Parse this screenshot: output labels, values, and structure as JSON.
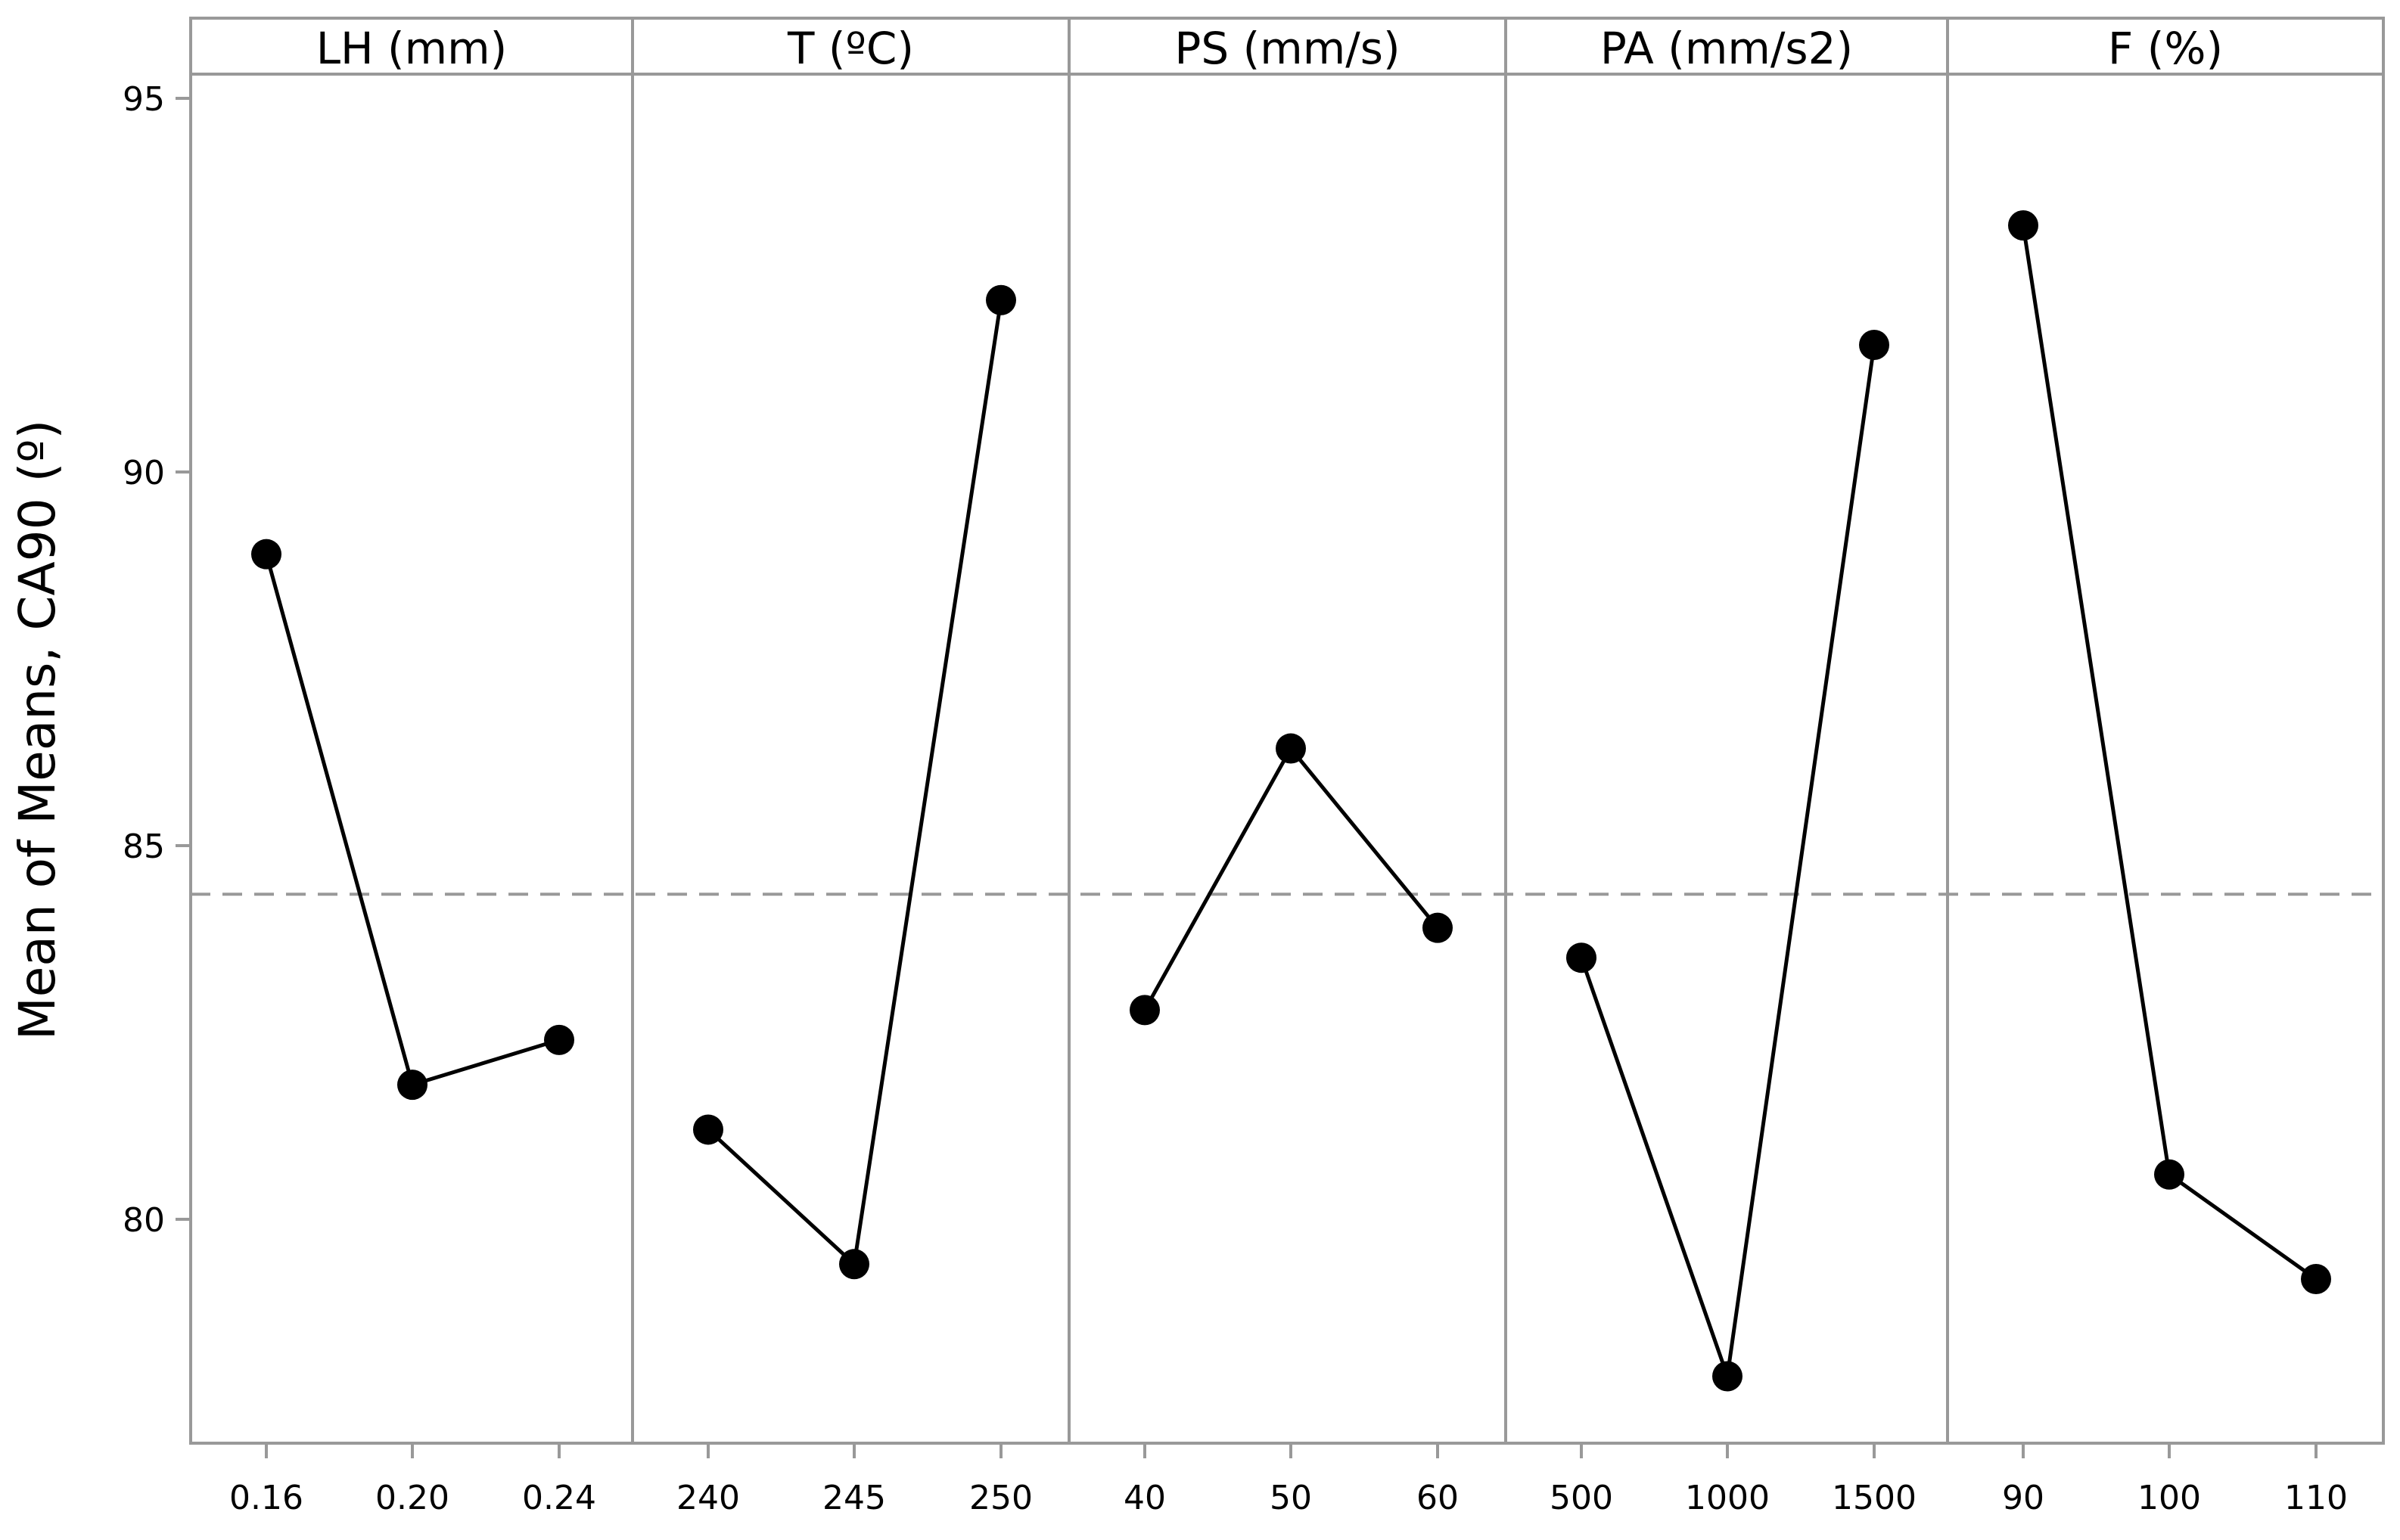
{
  "chart_data": {
    "type": "line",
    "title": "",
    "ylabel": "Mean of Means, CA90 (º)",
    "ylim": [
      77.4,
      95.3
    ],
    "yticks": [
      "80",
      "85",
      "90",
      "95"
    ],
    "reference_line": {
      "value": 84.35,
      "style": "dashed"
    },
    "panels": [
      {
        "name": "LH (mm)",
        "categories": [
          "0.16",
          "0.20",
          "0.24"
        ],
        "values": [
          88.9,
          81.8,
          82.4
        ]
      },
      {
        "name": "T (ºC)",
        "categories": [
          "240",
          "245",
          "250"
        ],
        "values": [
          81.2,
          79.4,
          92.3
        ]
      },
      {
        "name": "PS (mm/s)",
        "categories": [
          "40",
          "50",
          "60"
        ],
        "values": [
          82.8,
          86.3,
          83.9
        ]
      },
      {
        "name": "PA (mm/s2)",
        "categories": [
          "500",
          "1000",
          "1500"
        ],
        "values": [
          83.5,
          77.9,
          91.7
        ]
      },
      {
        "name": "F (%)",
        "categories": [
          "90",
          "100",
          "110"
        ],
        "values": [
          93.3,
          80.6,
          79.2
        ]
      }
    ]
  },
  "colors": {
    "frame": "#999999",
    "marker": "#000000",
    "line": "#000000",
    "reference": "#999999"
  }
}
